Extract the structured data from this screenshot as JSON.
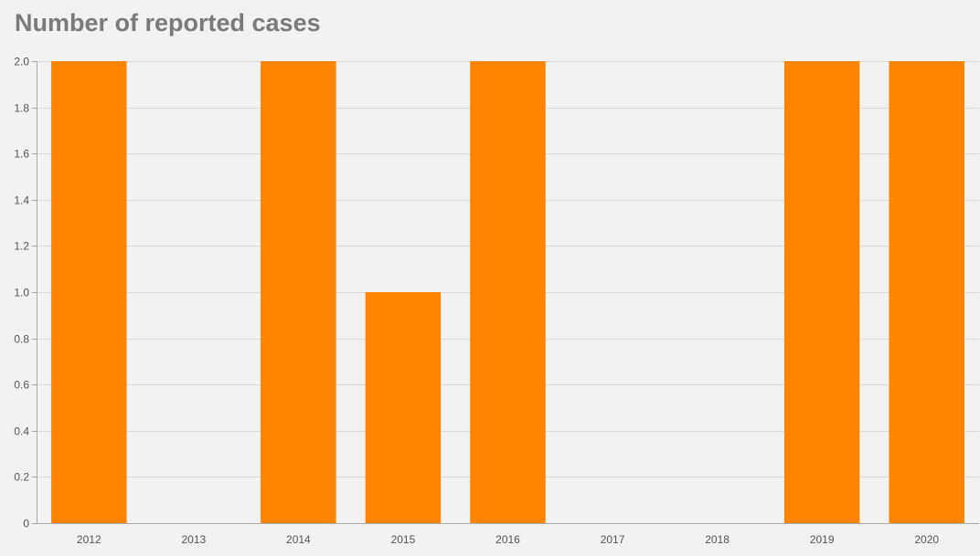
{
  "chart_data": {
    "type": "bar",
    "title": "Number of reported cases",
    "categories": [
      "2012",
      "2013",
      "2014",
      "2015",
      "2016",
      "2017",
      "2018",
      "2019",
      "2020"
    ],
    "values": [
      2,
      0,
      2,
      1,
      2,
      0,
      0,
      2,
      2
    ],
    "ylim": [
      0,
      2
    ],
    "yticks": [
      0,
      0.2,
      0.4,
      0.6,
      0.8,
      1.0,
      1.2,
      1.4,
      1.6,
      1.8,
      2.0
    ],
    "ytick_labels": [
      "0",
      "0.2",
      "0.4",
      "0.6",
      "0.8",
      "1.0",
      "1.2",
      "1.4",
      "1.6",
      "1.8",
      "2.0"
    ],
    "grid": true,
    "legend": "none",
    "bar_color": "#ff8400"
  }
}
